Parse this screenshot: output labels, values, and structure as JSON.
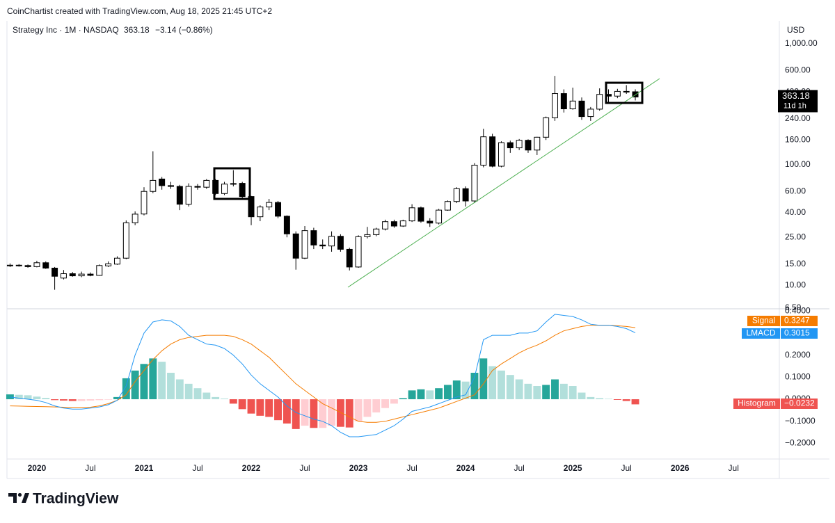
{
  "header": {
    "credit": "CoinChartist created with TradingView.com, Aug 18, 2025 21:45 UTC+2"
  },
  "footer": {
    "brand": "TradingView"
  },
  "chart_data": [
    {
      "type": "candlestick",
      "title": "Strategy Inc · 1M · NASDAQ",
      "change_label": "−3.14 (−0.86%)",
      "ylabel": "USD",
      "countdown": "11d 1h",
      "log_scale": true,
      "grid": false,
      "up_color": "#ffffff",
      "down_color": "#000000",
      "edge_color": "#000000",
      "ylim": [
        6.4,
        1550
      ],
      "yticks": [
        {
          "value": 1000,
          "label": "1,000.00"
        },
        {
          "value": 600,
          "label": "600.00"
        },
        {
          "value": 400,
          "label": "400.00"
        },
        {
          "value": 240,
          "label": "240.00"
        },
        {
          "value": 160,
          "label": "160.00"
        },
        {
          "value": 100,
          "label": "100.00"
        },
        {
          "value": 60,
          "label": "60.00"
        },
        {
          "value": 40,
          "label": "40.00"
        },
        {
          "value": 25,
          "label": "25.00"
        },
        {
          "value": 15,
          "label": "15.00"
        },
        {
          "value": 10,
          "label": "10.00"
        },
        {
          "value": 6.5,
          "label": "6.50"
        }
      ],
      "categories": [
        null,
        null,
        null,
        "2020",
        null,
        null,
        null,
        null,
        null,
        "Jul",
        null,
        null,
        null,
        null,
        null,
        "2021",
        null,
        null,
        null,
        null,
        null,
        "Jul",
        null,
        null,
        null,
        null,
        null,
        "2022",
        null,
        null,
        null,
        null,
        null,
        "Jul",
        null,
        null,
        null,
        null,
        null,
        "2023",
        null,
        null,
        null,
        null,
        null,
        "Jul",
        null,
        null,
        null,
        null,
        null,
        "2024",
        null,
        null,
        null,
        null,
        null,
        "Jul",
        null,
        null,
        null,
        null,
        null,
        "2025",
        null,
        null,
        null,
        null,
        null,
        "Jul",
        null,
        null,
        null,
        null,
        null,
        "2026",
        null,
        null,
        null,
        null,
        null,
        "Jul",
        null,
        null,
        null,
        null
      ],
      "open": [
        14.5,
        14.7,
        14.6,
        14.3,
        15.4,
        13.9,
        11.5,
        12.5,
        12.0,
        12.4,
        12.1,
        14.5,
        15.0,
        16.8,
        33.0,
        39.0,
        60.0,
        76.0,
        67.0,
        66.0,
        47.0,
        66.0,
        65.0,
        74.0,
        57.6,
        69.0,
        70.0,
        54.4,
        37.0,
        44.6,
        48.6,
        37.4,
        26.7,
        16.8,
        28.4,
        21.6,
        21.2,
        25.5,
        19.9,
        14.2,
        25.3,
        26.3,
        29.3,
        33.7,
        31.0,
        34.2,
        43.9,
        34.0,
        32.8,
        42.0,
        49.5,
        63.2,
        50.0,
        99.0,
        170.0,
        97.0,
        152.0,
        137.7,
        159.0,
        132.0,
        168.6,
        244.5,
        387.5,
        289.6,
        336.0,
        250.0,
        288.0,
        381.6,
        369.1,
        404.0,
        401.0,
        null,
        null,
        null,
        null,
        null,
        null,
        null,
        null,
        null,
        null,
        null,
        null,
        null,
        null,
        null
      ],
      "high": [
        15.2,
        15.0,
        14.9,
        16.0,
        15.8,
        14.2,
        13.4,
        12.9,
        13.0,
        12.8,
        14.9,
        15.8,
        17.4,
        34.5,
        41.0,
        65.0,
        129.0,
        79.0,
        72.0,
        68.0,
        70.0,
        69.0,
        76.0,
        76.0,
        72.0,
        90.0,
        72.0,
        55.0,
        46.0,
        52.0,
        50.0,
        38.0,
        28.0,
        31.0,
        30.0,
        24.0,
        28.0,
        26.5,
        20.5,
        26.0,
        30.5,
        30.0,
        35.0,
        35.0,
        35.0,
        47.0,
        45.0,
        36.0,
        43.0,
        50.5,
        65.0,
        66.0,
        103.0,
        198.0,
        180.0,
        156.0,
        158.0,
        163.0,
        162.0,
        170.0,
        250.0,
        543.0,
        420.0,
        434.0,
        360.0,
        300.0,
        428.0,
        420.0,
        424.0,
        455.0,
        420.0,
        null,
        null,
        null,
        null,
        null,
        null,
        null,
        null,
        null,
        null,
        null,
        null,
        null,
        null,
        null
      ],
      "low": [
        14.2,
        14.3,
        14.0,
        14.1,
        13.7,
        9.2,
        11.2,
        11.8,
        11.7,
        11.9,
        12.0,
        14.2,
        14.8,
        16.5,
        31.5,
        38.0,
        58.0,
        62.0,
        63.0,
        42.0,
        45.0,
        62.0,
        63.0,
        56.0,
        56.0,
        66.0,
        52.0,
        31.5,
        34.0,
        42.0,
        36.0,
        25.0,
        13.5,
        16.5,
        20.0,
        20.0,
        19.0,
        19.0,
        13.3,
        14.0,
        24.5,
        25.5,
        28.5,
        30.0,
        30.5,
        33.5,
        33.0,
        30.5,
        32.0,
        41.5,
        48.0,
        45.0,
        48.0,
        95.0,
        95.0,
        95.0,
        125.0,
        132.0,
        125.0,
        120.0,
        160.0,
        230.0,
        270.0,
        285.0,
        235.0,
        230.0,
        280.0,
        320.0,
        355.0,
        385.0,
        340.0,
        null,
        null,
        null,
        null,
        null,
        null,
        null,
        null,
        null,
        null,
        null,
        null,
        null,
        null,
        null
      ],
      "close": [
        14.7,
        14.6,
        14.3,
        15.4,
        13.9,
        11.9,
        12.5,
        12.0,
        12.4,
        12.1,
        14.6,
        15.1,
        16.8,
        33.0,
        38.9,
        60.0,
        74.0,
        67.0,
        66.0,
        47.0,
        66.0,
        65.0,
        74.0,
        57.6,
        69.0,
        69.7,
        54.4,
        37.0,
        44.6,
        48.6,
        37.4,
        26.7,
        16.8,
        28.4,
        21.6,
        21.2,
        25.5,
        19.9,
        14.2,
        25.3,
        26.3,
        29.3,
        33.7,
        31.0,
        34.2,
        43.9,
        34.0,
        32.8,
        42.0,
        49.5,
        63.2,
        50.0,
        99.0,
        170.0,
        97.0,
        152.0,
        137.7,
        159.0,
        132.0,
        168.6,
        244.5,
        387.5,
        289.6,
        336.0,
        250.0,
        288.0,
        381.6,
        369.1,
        404.0,
        401.0,
        363.18,
        null,
        null,
        null,
        null,
        null,
        null,
        null,
        null,
        null,
        null,
        null,
        null,
        null,
        null,
        null
      ]
    },
    {
      "type": "macd",
      "ylim": [
        -0.271,
        0.41
      ],
      "yticks": [
        {
          "value": 0.4,
          "label": "0.4000"
        },
        {
          "value": 0.2,
          "label": "0.2000"
        },
        {
          "value": 0.1,
          "label": "0.1000"
        },
        {
          "value": 0,
          "label": "0.0000"
        },
        {
          "value": -0.1,
          "label": "−0.1000"
        },
        {
          "value": -0.2,
          "label": "−0.2000"
        }
      ],
      "series": [
        {
          "name": "Histogram",
          "kind": "bar",
          "color": "#ef5350",
          "last_label": "−0.0232",
          "colors": {
            "positive_rising": "#26a69a",
            "positive_falling": "#b2dfdb",
            "negative_rising": "#ffcdd2",
            "negative_falling": "#ef5350"
          },
          "values": [
            0.022,
            0.02,
            0.018,
            0.012,
            0.006,
            -0.004,
            -0.006,
            -0.008,
            -0.008,
            -0.006,
            -0.004,
            -0.002,
            0.01,
            0.095,
            0.13,
            0.16,
            0.185,
            0.17,
            0.12,
            0.09,
            0.07,
            0.05,
            0.03,
            0.01,
            0.003,
            -0.02,
            -0.045,
            -0.065,
            -0.075,
            -0.08,
            -0.095,
            -0.11,
            -0.135,
            -0.12,
            -0.13,
            -0.13,
            -0.12,
            -0.125,
            -0.128,
            -0.1,
            -0.08,
            -0.06,
            -0.04,
            -0.02,
            0.005,
            0.04,
            0.045,
            0.04,
            0.05,
            0.065,
            0.085,
            0.08,
            0.12,
            0.185,
            0.15,
            0.13,
            0.11,
            0.09,
            0.07,
            0.06,
            0.065,
            0.09,
            0.07,
            0.06,
            0.03,
            0.01,
            0.005,
            0.002,
            -0.003,
            -0.008,
            -0.0232
          ]
        },
        {
          "name": "Signal",
          "kind": "line",
          "color": "#f57c00",
          "values": [
            -0.03,
            -0.031,
            -0.032,
            -0.033,
            -0.034,
            -0.035,
            -0.036,
            -0.037,
            -0.037,
            -0.036,
            -0.03,
            -0.02,
            -0.005,
            0.02,
            0.08,
            0.13,
            0.18,
            0.22,
            0.25,
            0.27,
            0.28,
            0.285,
            0.29,
            0.29,
            0.29,
            0.285,
            0.27,
            0.25,
            0.22,
            0.19,
            0.15,
            0.11,
            0.07,
            0.04,
            0.01,
            -0.02,
            -0.04,
            -0.06,
            -0.08,
            -0.1,
            -0.105,
            -0.105,
            -0.1,
            -0.09,
            -0.08,
            -0.07,
            -0.06,
            -0.05,
            -0.04,
            -0.025,
            -0.01,
            0.005,
            0.02,
            0.07,
            0.13,
            0.16,
            0.185,
            0.21,
            0.23,
            0.245,
            0.265,
            0.29,
            0.31,
            0.32,
            0.33,
            0.335,
            0.335,
            0.335,
            0.333,
            0.33,
            0.3247
          ]
        },
        {
          "name": "LMACD",
          "kind": "line",
          "color": "#2196f3",
          "values": [
            0.01,
            0.005,
            0.0,
            -0.005,
            -0.015,
            -0.03,
            -0.04,
            -0.045,
            -0.045,
            -0.04,
            -0.035,
            -0.025,
            -0.005,
            0.06,
            0.2,
            0.3,
            0.35,
            0.36,
            0.355,
            0.33,
            0.29,
            0.27,
            0.25,
            0.245,
            0.23,
            0.2,
            0.16,
            0.11,
            0.07,
            0.04,
            0.01,
            -0.03,
            -0.06,
            -0.075,
            -0.09,
            -0.1,
            -0.12,
            -0.15,
            -0.17,
            -0.17,
            -0.165,
            -0.16,
            -0.14,
            -0.12,
            -0.09,
            -0.055,
            -0.045,
            -0.035,
            -0.02,
            -0.005,
            0.01,
            0.02,
            0.1,
            0.27,
            0.29,
            0.29,
            0.29,
            0.3,
            0.3,
            0.31,
            0.35,
            0.385,
            0.38,
            0.375,
            0.36,
            0.34,
            0.335,
            0.335,
            0.33,
            0.32,
            0.3015
          ]
        }
      ]
    }
  ]
}
